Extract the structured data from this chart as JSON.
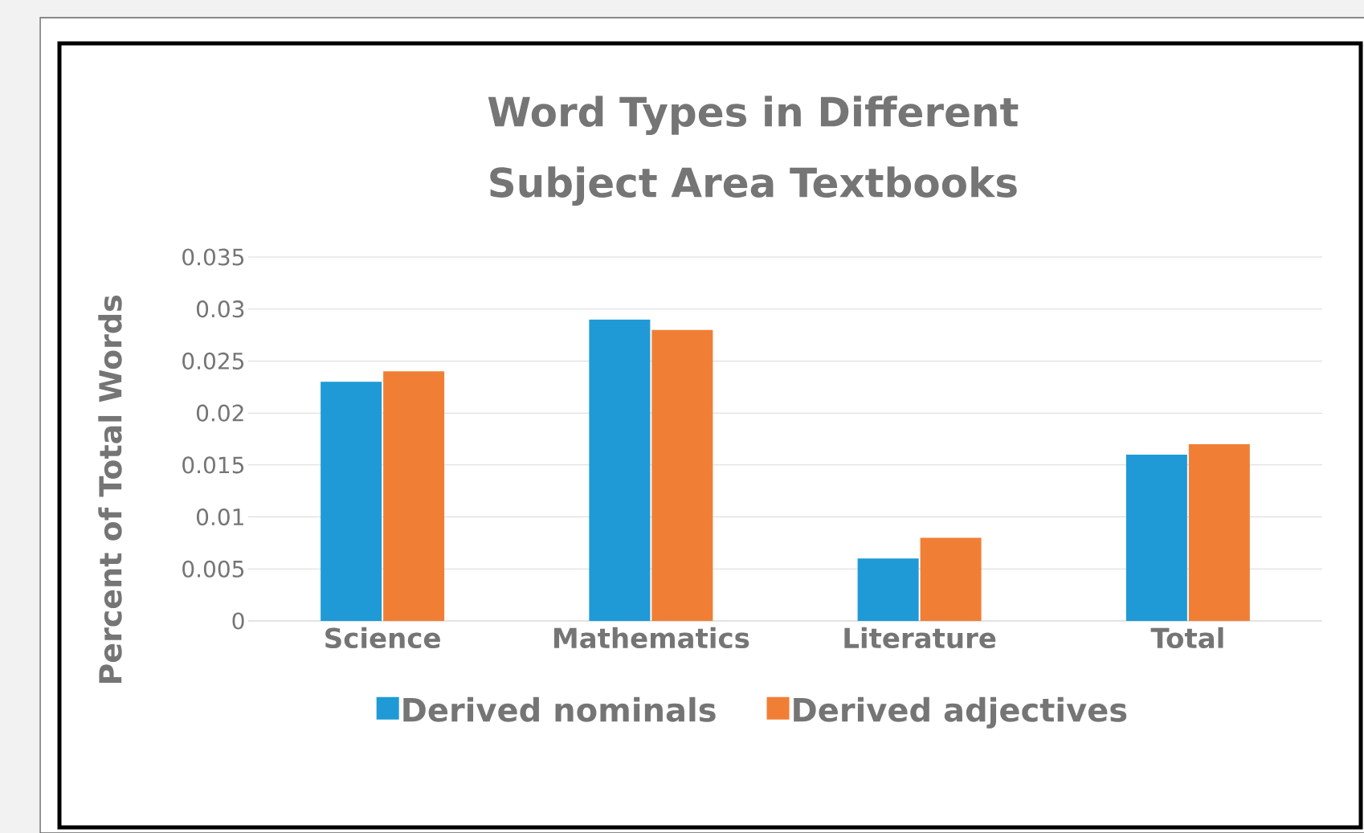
{
  "chart_data": {
    "type": "bar",
    "title": "Word Types in Different Subject Area Textbooks",
    "ylabel": "Percent of Total Words",
    "categories": [
      "Science",
      "Mathematics",
      "Literature",
      "Total"
    ],
    "series": [
      {
        "name": "Derived nominals",
        "color": "#1f9ad6",
        "values": [
          0.023,
          0.029,
          0.006,
          0.016
        ]
      },
      {
        "name": "Derived adjectives",
        "color": "#f07f35",
        "values": [
          0.024,
          0.028,
          0.008,
          0.017
        ]
      }
    ],
    "ylim": [
      0,
      0.035
    ],
    "yticks": [
      0,
      0.005,
      0.01,
      0.015,
      0.02,
      0.025,
      0.03,
      0.035
    ],
    "grid": "y",
    "legend": "bottom"
  }
}
